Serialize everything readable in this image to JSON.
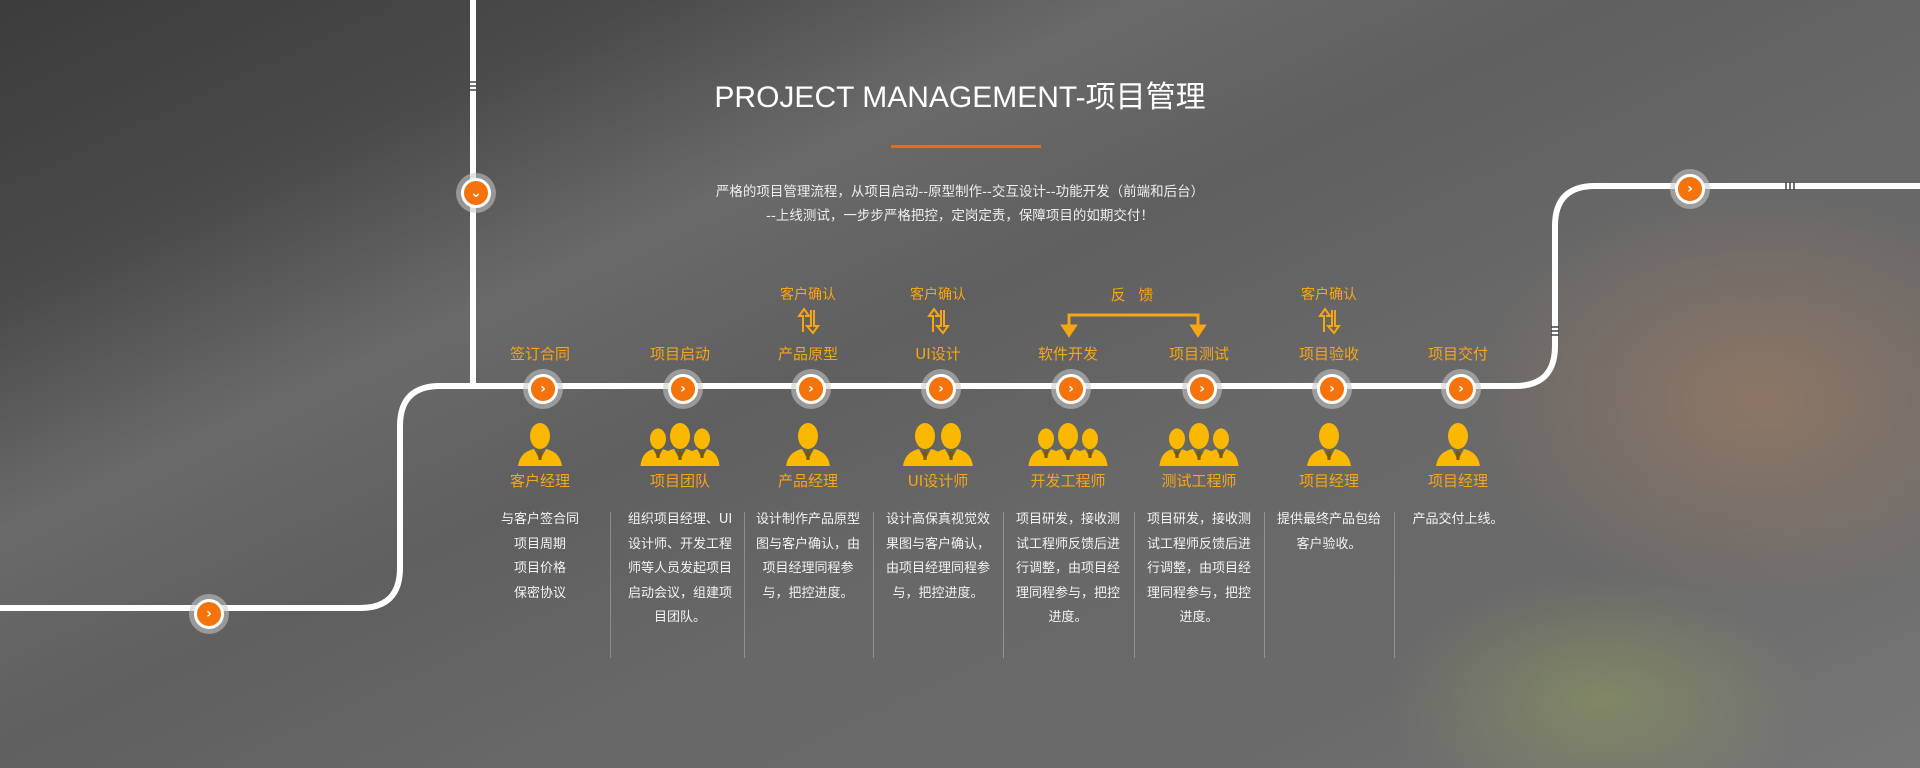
{
  "header": {
    "title": "PROJECT MANAGEMENT-项目管理",
    "subtitle_line1": "严格的项目管理流程，从项目启动--原型制作--交互设计--功能开发（前端和后台）",
    "subtitle_line2": "--上线测试，一步步严格把控，定岗定责，保障项目的如期交付！"
  },
  "colors": {
    "accent": "#f5730c",
    "label": "#f8a514",
    "icon": "#fbb800",
    "line": "#ffffff"
  },
  "feedback_label": "反 馈",
  "steps": [
    {
      "stage": "签订合同",
      "confirm": "",
      "role": "客户经理",
      "people": 1,
      "desc": "与客户签合同\n项目周期\n项目价格\n保密协议"
    },
    {
      "stage": "项目启动",
      "confirm": "",
      "role": "项目团队",
      "people": 3,
      "desc": "组织项目经理、UI设计师、开发工程师等人员发起项目启动会议，组建项目团队。"
    },
    {
      "stage": "产品原型",
      "confirm": "客户确认",
      "role": "产品经理",
      "people": 1,
      "desc": "设计制作产品原型图与客户确认，由项目经理同程参与，把控进度。"
    },
    {
      "stage": "UI设计",
      "confirm": "客户确认",
      "role": "UI设计师",
      "people": 2,
      "desc": "设计高保真视觉效果图与客户确认，由项目经理同程参与，把控进度。"
    },
    {
      "stage": "软件开发",
      "confirm": "",
      "role": "开发工程师",
      "people": 3,
      "desc": "项目研发，接收测试工程师反馈后进行调整，由项目经理同程参与，把控进度。"
    },
    {
      "stage": "项目测试",
      "confirm": "",
      "role": "测试工程师",
      "people": 3,
      "desc": "项目研发，接收测试工程师反馈后进行调整，由项目经理同程参与，把控进度。"
    },
    {
      "stage": "项目验收",
      "confirm": "客户确认",
      "role": "项目经理",
      "people": 1,
      "desc": "提供最终产品包给客户验收。"
    },
    {
      "stage": "项目交付",
      "confirm": "",
      "role": "项目经理",
      "people": 1,
      "desc": "产品交付上线。"
    }
  ]
}
